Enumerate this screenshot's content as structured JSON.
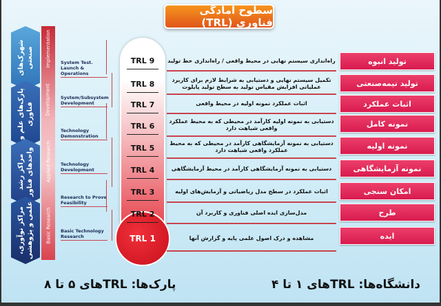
{
  "title": "سطوح آمادگی فناوری (TRL)",
  "institutions": [
    "شهرک‌های صنعتی",
    "پارک‌های علم و فناوری",
    "مراکز رشد واحدهای فناور",
    "مراکز نوآوری، علمی و پژوهشی"
  ],
  "phases": [
    "Implementation",
    "Development",
    "Applied Research",
    "Basic Research"
  ],
  "stages": [
    "System Test. Launch & Operations",
    "System/Subsystem Development",
    "Technology Demonstration",
    "Technology Development",
    "Research to Prove Feasibility",
    "Basic Technology Research"
  ],
  "levels": [
    {
      "trl": "TRL 9",
      "desc": "راه‌اندازی سیستم نهایی در محیط واقعی / راه‌اندازی خط تولید",
      "label": "تولید انبوه"
    },
    {
      "trl": "TRL 8",
      "desc": "تکمیل سیستم نهایی و دستیابی به شرایط لازم برای کاربرد عملیاتی افزایش مقیاس تولید به سطح تولید پایلوت",
      "label": "تولید نیمه‌صنعتی"
    },
    {
      "trl": "TRL 7",
      "desc": "اثبات عملکرد نمونه اولیه در محیط واقعی",
      "label": "اثبات عملکرد"
    },
    {
      "trl": "TRL 6",
      "desc": "دستیابی به نمونه اولیه کارآمد در محیطی که به محیط عملکرد واقعی شباهت دارد",
      "label": "نمونه کامل"
    },
    {
      "trl": "TRL 5",
      "desc": "دستیابی به نمونه آزمایشگاهی کارآمد در محیطی که به محیط عملکرد واقعی شباهت دارد",
      "label": "نمونه اولیه"
    },
    {
      "trl": "TRL 4",
      "desc": "دستیابی به نمونه آزمایشگاهی کارآمد در محیط آزمایشگاهی",
      "label": "نمونه آزمایشگاهی"
    },
    {
      "trl": "TRL 3",
      "desc": "اثبات عملکرد در سطح مدل ریاضیاتی و آزمایش‌های اولیه",
      "label": "امکان سنجی"
    },
    {
      "trl": "TRL 2",
      "desc": "مدل‌سازی ایده اصلی فناوری و کاربرد آن",
      "label": "طرح"
    },
    {
      "trl": "TRL 1",
      "desc": "مشاهده و درک اصول علمی پایه و گزارش آنها",
      "label": "ایده"
    }
  ],
  "footer": {
    "parks": "پارک‌ها: TRLهای ۵ تا ۸",
    "universities": "دانشگاه‌ها: TRLهای ۱ تا ۴"
  },
  "colors": {
    "accent": "#e0561b",
    "button": "#d81b4f",
    "thermo": "#e5313c",
    "arrow": "#2a5fa8"
  }
}
